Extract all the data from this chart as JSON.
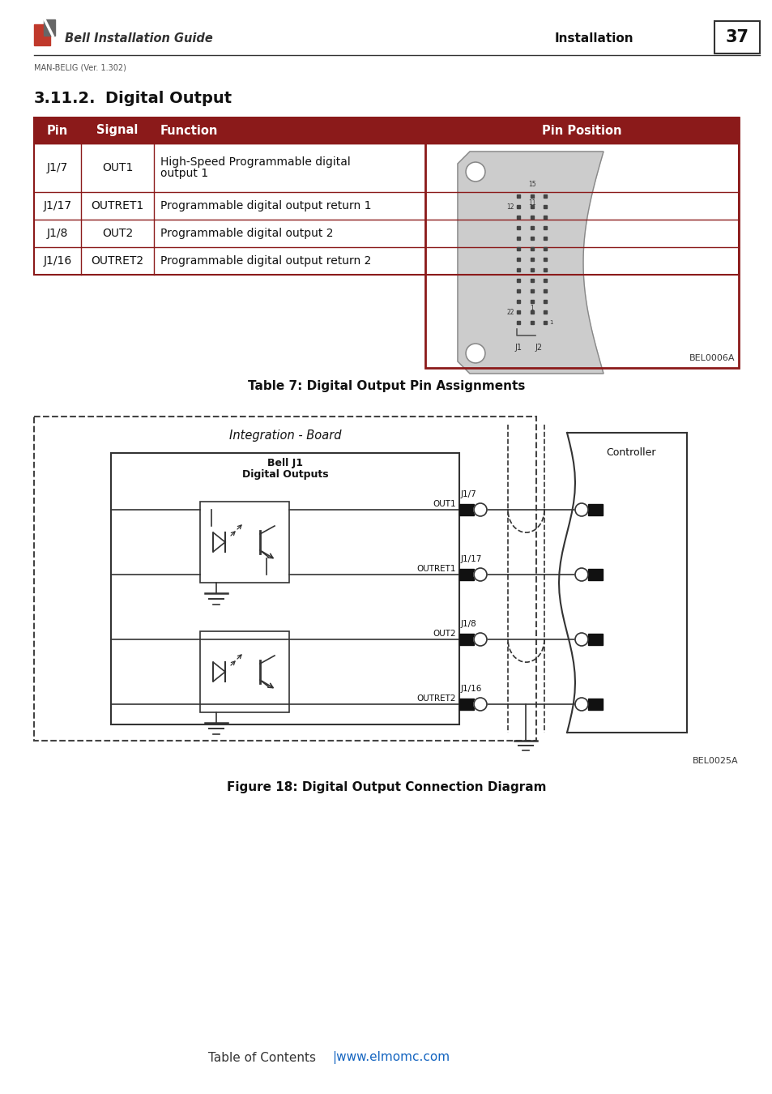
{
  "page_number": "37",
  "doc_title": "Bell Installation Guide",
  "doc_subtitle": "Installation",
  "doc_version": "MAN-BELIG (Ver. 1.302)",
  "section_title": "3.11.2.",
  "section_title2": "Digital Output",
  "table_header": [
    "Pin",
    "Signal",
    "Function",
    "Pin Position"
  ],
  "table_rows": [
    [
      "J1/7",
      "OUT1",
      "High-Speed Programmable digital\noutput 1"
    ],
    [
      "J1/17",
      "OUTRET1",
      "Programmable digital output return 1"
    ],
    [
      "J1/8",
      "OUT2",
      "Programmable digital output 2"
    ],
    [
      "J1/16",
      "OUTRET2",
      "Programmable digital output return 2"
    ]
  ],
  "table_caption": "Table 7: Digital Output Pin Assignments",
  "diagram_caption": "Figure 18: Digital Output Connection Diagram",
  "bel_ref1": "BEL0006A",
  "bel_ref2": "BEL0025A",
  "header_color": "#8B1A1A",
  "header_text_color": "#FFFFFF",
  "row_border_color": "#8B1A1A",
  "background_color": "#FFFFFF",
  "footer_text": "Table of Contents",
  "footer_link": "|www.elmomc.com"
}
